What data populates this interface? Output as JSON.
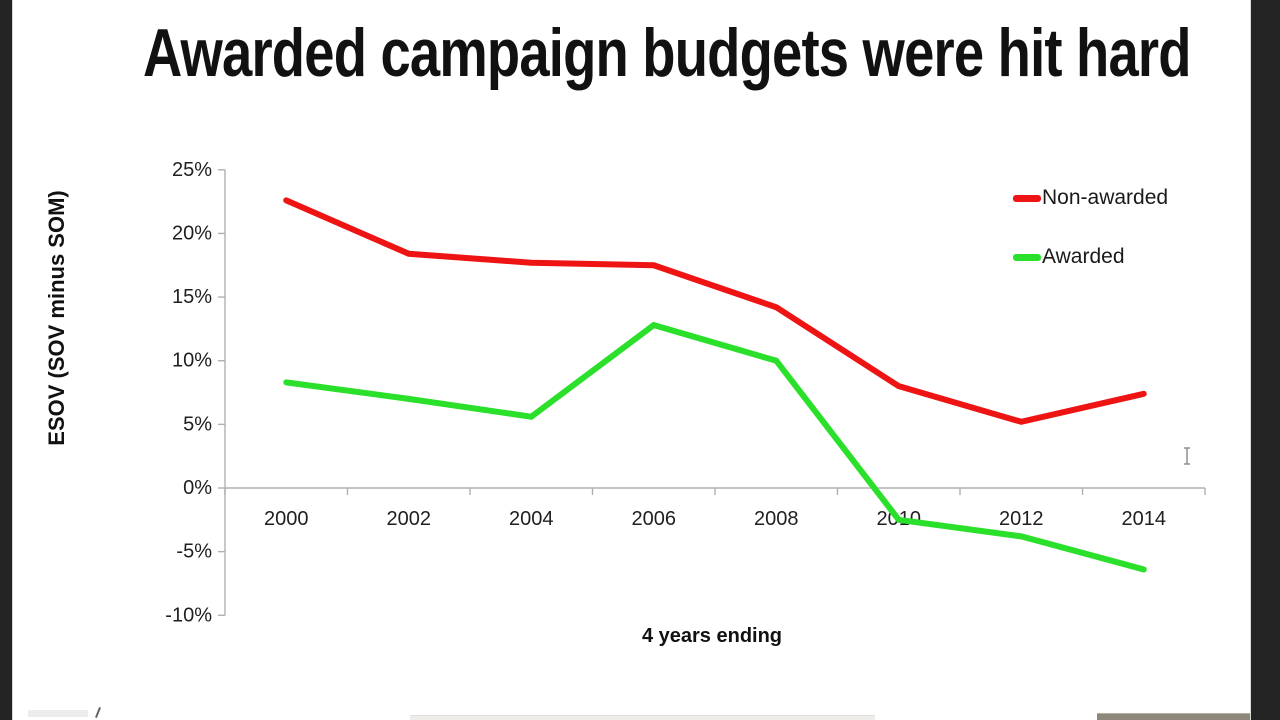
{
  "title": "Awarded campaign budgets were hit hard",
  "colors": {
    "non_awarded": "#ee1414",
    "awarded": "#2ae02a",
    "axis": "#b0b0b0",
    "text": "#1a1a1a",
    "letterbox": "#232323"
  },
  "cursor": {
    "type": "i-beam"
  },
  "chart_data": {
    "type": "line",
    "title": "",
    "xlabel": "4 years ending",
    "ylabel": "ESOV (SOV minus SOM)",
    "categories": [
      "2000",
      "2002",
      "2004",
      "2006",
      "2008",
      "2010",
      "2012",
      "2014"
    ],
    "series": [
      {
        "name": "Non-awarded",
        "color": "#ee1414",
        "values": [
          22.6,
          18.4,
          17.7,
          17.5,
          14.2,
          8.0,
          5.2,
          7.4
        ]
      },
      {
        "name": "Awarded",
        "color": "#2ae02a",
        "values": [
          8.3,
          7.0,
          5.6,
          12.8,
          10.0,
          -2.5,
          -3.8,
          -6.4
        ]
      }
    ],
    "y_ticks": [
      25,
      20,
      15,
      10,
      5,
      0,
      -5,
      -10
    ],
    "y_tick_suffix": "%",
    "ylim": [
      -10,
      25
    ],
    "grid": false,
    "legend_position": "top-right"
  }
}
